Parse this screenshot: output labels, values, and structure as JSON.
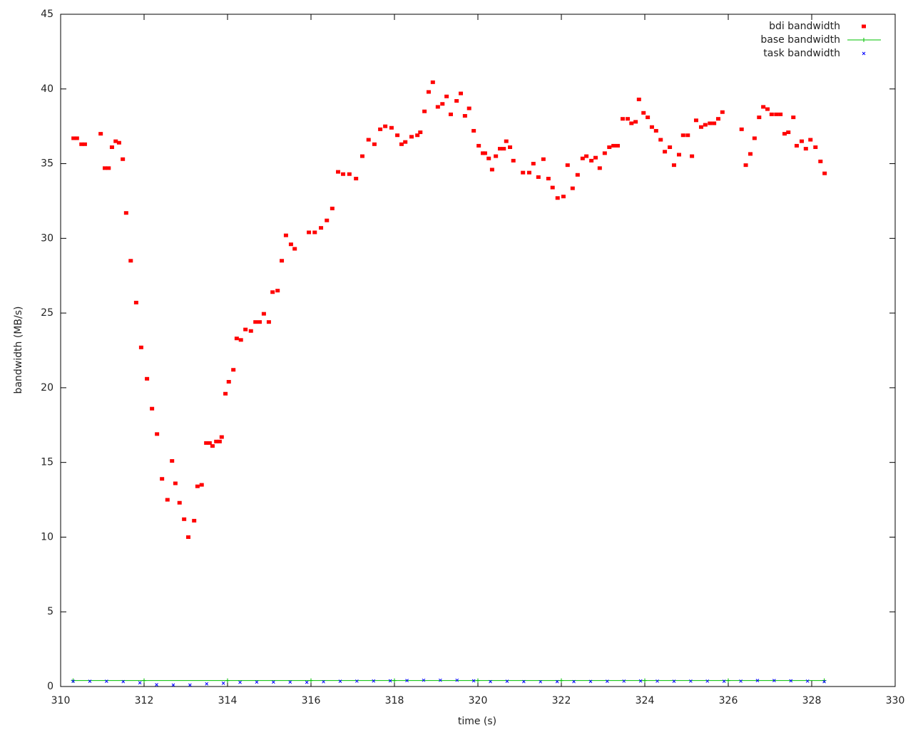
{
  "chart_data": {
    "type": "scatter",
    "xlabel": "time (s)",
    "ylabel": "bandwidth (MB/s)",
    "xlim": [
      310,
      330
    ],
    "xticks": [
      310,
      312,
      314,
      316,
      318,
      320,
      322,
      324,
      326,
      328,
      330
    ],
    "ylim": [
      0,
      45
    ],
    "yticks": [
      0,
      5,
      10,
      15,
      20,
      25,
      30,
      35,
      40,
      45
    ],
    "legend": "top-right",
    "series": [
      {
        "name": "bdi bandwidth",
        "color": "#ff0000",
        "marker": "square",
        "x": [
          310.31,
          310.39,
          310.5,
          310.58,
          310.96,
          311.06,
          311.15,
          311.23,
          311.32,
          311.4,
          311.49,
          311.57,
          311.68,
          311.81,
          311.93,
          312.07,
          312.19,
          312.31,
          312.43,
          312.56,
          312.67,
          312.75,
          312.85,
          312.96,
          313.06,
          313.2,
          313.28,
          313.38,
          313.49,
          313.57,
          313.64,
          313.73,
          313.81,
          313.86,
          313.95,
          314.03,
          314.14,
          314.22,
          314.32,
          314.43,
          314.56,
          314.67,
          314.77,
          314.87,
          314.99,
          315.08,
          315.2,
          315.3,
          315.4,
          315.52,
          315.61,
          315.95,
          316.09,
          316.24,
          316.38,
          316.51,
          316.65,
          316.77,
          316.92,
          317.08,
          317.23,
          317.38,
          317.52,
          317.66,
          317.78,
          317.93,
          318.07,
          318.17,
          318.26,
          318.41,
          318.55,
          318.62,
          318.72,
          318.82,
          318.92,
          319.04,
          319.15,
          319.25,
          319.35,
          319.49,
          319.59,
          319.69,
          319.79,
          319.9,
          320.02,
          320.12,
          320.17,
          320.26,
          320.34,
          320.43,
          320.53,
          320.62,
          320.68,
          320.77,
          320.85,
          321.08,
          321.23,
          321.33,
          321.45,
          321.57,
          321.69,
          321.79,
          321.91,
          322.05,
          322.15,
          322.27,
          322.39,
          322.51,
          322.6,
          322.72,
          322.82,
          322.92,
          323.04,
          323.15,
          323.25,
          323.35,
          323.47,
          323.59,
          323.68,
          323.78,
          323.86,
          323.97,
          324.07,
          324.17,
          324.27,
          324.38,
          324.48,
          324.6,
          324.7,
          324.82,
          324.92,
          325.03,
          325.13,
          325.23,
          325.35,
          325.45,
          325.56,
          325.66,
          325.76,
          325.86,
          326.32,
          326.42,
          326.53,
          326.63,
          326.74,
          326.84,
          326.94,
          327.04,
          327.15,
          327.25,
          327.35,
          327.44,
          327.56,
          327.64,
          327.76,
          327.86,
          327.97,
          328.09,
          328.21,
          328.31
        ],
        "values": [
          36.7,
          36.7,
          36.3,
          36.3,
          37.0,
          34.7,
          34.7,
          36.1,
          36.5,
          36.4,
          35.3,
          31.7,
          28.5,
          25.7,
          22.7,
          20.6,
          18.6,
          16.9,
          13.9,
          12.5,
          15.1,
          13.6,
          12.3,
          11.2,
          10.0,
          11.1,
          13.4,
          13.5,
          16.3,
          16.3,
          16.1,
          16.4,
          16.4,
          16.7,
          19.6,
          20.4,
          21.2,
          23.3,
          23.2,
          23.9,
          23.8,
          24.4,
          24.4,
          24.95,
          24.4,
          26.4,
          26.5,
          28.5,
          30.2,
          29.6,
          29.3,
          30.4,
          30.4,
          30.7,
          31.2,
          32.0,
          34.45,
          34.3,
          34.3,
          34.0,
          35.5,
          36.6,
          36.3,
          37.3,
          37.5,
          37.4,
          36.9,
          36.3,
          36.45,
          36.8,
          36.9,
          37.1,
          38.5,
          39.8,
          40.45,
          38.8,
          39.0,
          39.5,
          38.3,
          39.2,
          39.7,
          38.2,
          38.7,
          37.2,
          36.2,
          35.7,
          35.7,
          35.35,
          34.6,
          35.5,
          36.0,
          36.0,
          36.5,
          36.1,
          35.2,
          34.4,
          34.4,
          35.0,
          34.1,
          35.3,
          34.0,
          33.4,
          32.7,
          32.8,
          34.9,
          33.35,
          34.25,
          35.35,
          35.5,
          35.2,
          35.4,
          34.7,
          35.7,
          36.1,
          36.2,
          36.2,
          38.0,
          38.0,
          37.7,
          37.8,
          39.3,
          38.4,
          38.1,
          37.45,
          37.2,
          36.6,
          35.8,
          36.1,
          34.9,
          35.6,
          36.9,
          36.9,
          35.5,
          37.9,
          37.45,
          37.6,
          37.7,
          37.7,
          38.0,
          38.45,
          37.3,
          34.9,
          35.65,
          36.7,
          38.1,
          38.8,
          38.65,
          38.3,
          38.3,
          38.3,
          37.0,
          37.1,
          38.1,
          36.2,
          36.5,
          36.0,
          36.6,
          36.1,
          35.15,
          34.35
        ]
      },
      {
        "name": "base bandwidth",
        "color": "#00c000",
        "marker": "plus",
        "line": true,
        "x": [
          310.3,
          312,
          314,
          316,
          318,
          320,
          322,
          324,
          326,
          328.3
        ],
        "values": [
          0.4,
          0.4,
          0.4,
          0.4,
          0.4,
          0.4,
          0.4,
          0.4,
          0.4,
          0.4
        ]
      },
      {
        "name": "task bandwidth",
        "color": "#0000ff",
        "marker": "cross",
        "x": [
          310.3,
          310.7,
          311.1,
          311.5,
          311.9,
          312.3,
          312.7,
          313.1,
          313.5,
          313.9,
          314.3,
          314.7,
          315.1,
          315.5,
          315.9,
          316.3,
          316.7,
          317.1,
          317.5,
          317.9,
          318.3,
          318.7,
          319.1,
          319.5,
          319.9,
          320.3,
          320.7,
          321.1,
          321.5,
          321.9,
          322.3,
          322.7,
          323.1,
          323.5,
          323.9,
          324.3,
          324.7,
          325.1,
          325.5,
          325.9,
          326.3,
          326.7,
          327.1,
          327.5,
          327.9,
          328.3
        ],
        "values": [
          0.35,
          0.35,
          0.35,
          0.33,
          0.25,
          0.12,
          0.1,
          0.1,
          0.18,
          0.22,
          0.28,
          0.3,
          0.3,
          0.3,
          0.28,
          0.32,
          0.35,
          0.36,
          0.37,
          0.38,
          0.4,
          0.42,
          0.42,
          0.42,
          0.38,
          0.33,
          0.35,
          0.33,
          0.32,
          0.33,
          0.33,
          0.34,
          0.35,
          0.36,
          0.37,
          0.36,
          0.35,
          0.36,
          0.36,
          0.35,
          0.36,
          0.4,
          0.4,
          0.38,
          0.36,
          0.33
        ]
      }
    ]
  }
}
